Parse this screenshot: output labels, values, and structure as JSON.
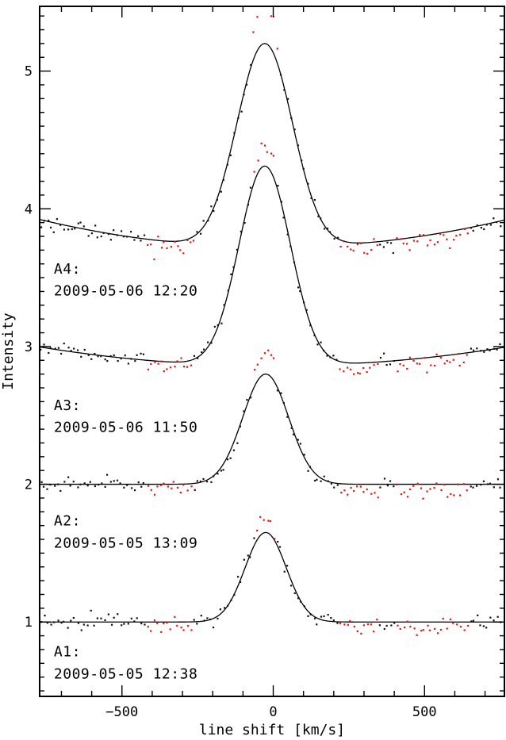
{
  "figure": {
    "background": "#ffffff"
  },
  "chart_data": {
    "type": "scatter",
    "title": "",
    "xlabel": "line shift [km/s]",
    "ylabel": "Intensity",
    "xlim": [
      -772,
      764
    ],
    "ylim": [
      0.46,
      5.47
    ],
    "grid": false,
    "legend": null,
    "colors": {
      "data_points": "#111111",
      "excluded_points": "#e8130b",
      "fit_curve": "#000000",
      "axis": "#000000"
    },
    "x_major_ticks": [
      {
        "value": -500,
        "label": "−500"
      },
      {
        "value": 0,
        "label": "0"
      },
      {
        "value": 500,
        "label": "500"
      }
    ],
    "x_minor_step": 100,
    "y_major_ticks": [
      {
        "value": 1,
        "label": "1"
      },
      {
        "value": 2,
        "label": "2"
      },
      {
        "value": 3,
        "label": "3"
      },
      {
        "value": 4,
        "label": "4"
      },
      {
        "value": 5,
        "label": "5"
      }
    ],
    "y_minor_step": 0.1,
    "excluded_bands": [
      [
        -422,
        -263
      ],
      [
        220,
        352
      ],
      [
        403,
        648
      ]
    ],
    "series": [
      {
        "name": "A1",
        "label": "A1:",
        "datetime": "2009-05-05 12:38",
        "continuum_level": 1.0,
        "continuum_curvature": 0,
        "peak_center": -25,
        "peak_sigma": 68,
        "peak_amplitude": 0.65,
        "core_excess": 0.1,
        "noise_sigma": 0.028,
        "sample_step": 11,
        "seed": 11
      },
      {
        "name": "A2",
        "label": "A2:",
        "datetime": "2009-05-05 13:09",
        "continuum_level": 2.0,
        "continuum_curvature": 0,
        "peak_center": -25,
        "peak_sigma": 76,
        "peak_amplitude": 0.8,
        "core_excess": 0.2,
        "noise_sigma": 0.028,
        "sample_step": 11,
        "seed": 22
      },
      {
        "name": "A3",
        "label": "A3:",
        "datetime": "2009-05-06 11:50",
        "continuum_level": 2.86,
        "continuum_curvature": 2.3e-07,
        "peak_center": -28,
        "peak_sigma": 85,
        "peak_amplitude": 1.45,
        "core_excess": 0.13,
        "noise_sigma": 0.028,
        "sample_step": 11,
        "seed": 33
      },
      {
        "name": "A4",
        "label": "A4:",
        "datetime": "2009-05-06 12:20",
        "continuum_level": 3.72,
        "continuum_curvature": 3.4e-07,
        "peak_center": -28,
        "peak_sigma": 92,
        "peak_amplitude": 1.48,
        "core_excess": 0.3,
        "noise_sigma": 0.028,
        "sample_step": 11,
        "seed": 44
      }
    ],
    "annotations": [
      {
        "name": "a4-label",
        "text": "A4:",
        "x": -725,
        "y": 3.53
      },
      {
        "name": "a4-datetime",
        "text": "2009-05-06 12:20",
        "x": -725,
        "y": 3.37
      },
      {
        "name": "a3-label",
        "text": "A3:",
        "x": -725,
        "y": 2.54
      },
      {
        "name": "a3-datetime",
        "text": "2009-05-06 11:50",
        "x": -725,
        "y": 2.38
      },
      {
        "name": "a2-label",
        "text": "A2:",
        "x": -725,
        "y": 1.7
      },
      {
        "name": "a2-datetime",
        "text": "2009-05-05 13:09",
        "x": -725,
        "y": 1.54
      },
      {
        "name": "a1-label",
        "text": "A1:",
        "x": -725,
        "y": 0.75
      },
      {
        "name": "a1-datetime",
        "text": "2009-05-05 12:38",
        "x": -725,
        "y": 0.59
      }
    ]
  }
}
